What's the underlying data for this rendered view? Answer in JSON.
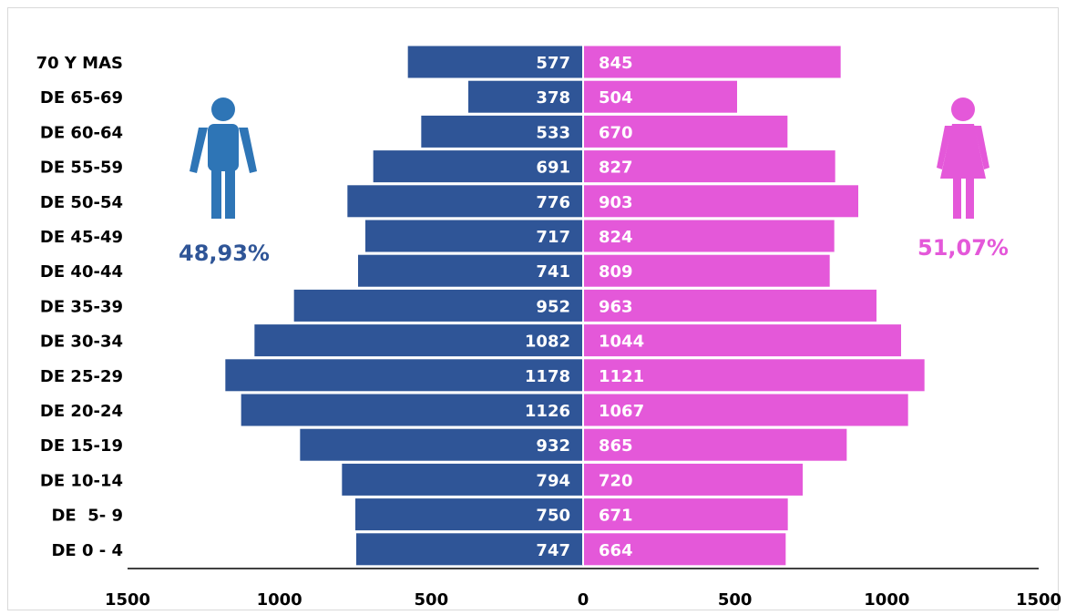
{
  "chart_data": {
    "type": "bar",
    "subtype": "population-pyramid",
    "categories": [
      "70 Y MAS",
      "DE 65-69",
      "DE 60-64",
      "DE 55-59",
      "DE 50-54",
      "DE 45-49",
      "DE 40-44",
      "DE 35-39",
      "DE 30-34",
      "DE 25-29",
      "DE 20-24",
      "DE 15-19",
      "DE 10-14",
      "DE  5- 9",
      "DE 0 - 4"
    ],
    "series": [
      {
        "side": "left",
        "color": "#2f5597",
        "values": [
          577,
          378,
          533,
          691,
          776,
          717,
          741,
          952,
          1082,
          1178,
          1126,
          932,
          794,
          750,
          747
        ]
      },
      {
        "side": "right",
        "color": "#e458d9",
        "values": [
          845,
          504,
          670,
          827,
          903,
          824,
          809,
          963,
          1044,
          1121,
          1067,
          865,
          720,
          671,
          664
        ]
      }
    ],
    "xlim": [
      -1500,
      1500
    ],
    "x_ticks": [
      "1500",
      "1000",
      "500",
      "0",
      "500",
      "1000",
      "1500"
    ],
    "grid": false,
    "annotations": {
      "left_percent": "48,93%",
      "right_percent": "51,07%",
      "left_icon": "male-person-icon",
      "right_icon": "female-person-icon",
      "left_icon_color": "#2e75b6",
      "right_icon_color": "#e458d9"
    }
  }
}
